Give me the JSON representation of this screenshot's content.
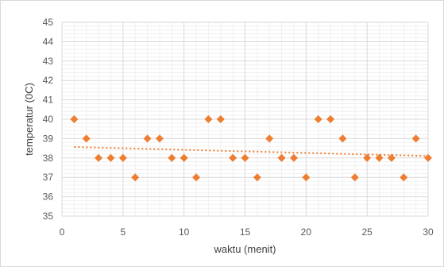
{
  "chart_data": {
    "type": "scatter",
    "xlabel": "waktu (menit)",
    "ylabel": "temperatur (0C)",
    "xlim": [
      0,
      30
    ],
    "ylim": [
      35,
      45
    ],
    "x_ticks": [
      "0",
      "5",
      "10",
      "15",
      "20",
      "25",
      "30"
    ],
    "y_ticks": [
      "35",
      "36",
      "37",
      "38",
      "39",
      "40",
      "41",
      "42",
      "43",
      "44",
      "45"
    ],
    "grid": true,
    "legend": "none",
    "marker": "diamond",
    "series": [
      {
        "x": [
          1,
          2,
          3,
          4,
          5,
          6,
          7,
          8,
          9,
          10,
          11,
          12,
          13,
          14,
          15,
          16,
          17,
          18,
          19,
          20,
          21,
          22,
          23,
          24,
          25,
          26,
          27,
          28,
          29,
          30
        ],
        "y": [
          40,
          39,
          38,
          38,
          38,
          37,
          39,
          39,
          38,
          38,
          37,
          40,
          40,
          38,
          38,
          37,
          39,
          38,
          38,
          37,
          40,
          40,
          39,
          37,
          38,
          38,
          38,
          37,
          39,
          38
        ]
      }
    ],
    "trendline": {
      "type": "linear",
      "style": "dotted"
    },
    "colors": {
      "marker": "#ed7d31",
      "trendline": "#ed7d31",
      "major_grid": "#d9d9d9",
      "minor_grid": "#f0f0f0"
    }
  }
}
